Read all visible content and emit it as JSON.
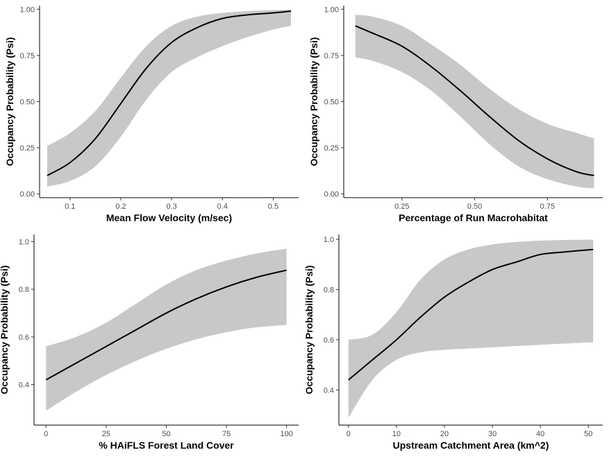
{
  "chart_data": [
    {
      "type": "line",
      "xlabel": "Mean Flow Velocity (m/sec)",
      "ylabel": "Occupancy Probability (Psi)",
      "xlim": [
        0.04,
        0.55
      ],
      "ylim": [
        -0.02,
        1.02
      ],
      "x_ticks": [
        0.1,
        0.2,
        0.3,
        0.4,
        0.5
      ],
      "x_tick_labels": [
        "0.1",
        "0.2",
        "0.3",
        "0.4",
        "0.5"
      ],
      "y_ticks": [
        0,
        0.25,
        0.5,
        0.75,
        1
      ],
      "y_tick_labels": [
        "0.00",
        "0.25",
        "0.50",
        "0.75",
        "1.00"
      ],
      "series": [
        {
          "x": [
            0.055,
            0.1,
            0.15,
            0.2,
            0.25,
            0.3,
            0.35,
            0.4,
            0.45,
            0.5,
            0.535
          ],
          "y": [
            0.1,
            0.17,
            0.3,
            0.49,
            0.68,
            0.82,
            0.9,
            0.95,
            0.97,
            0.98,
            0.99
          ],
          "lower": [
            0.04,
            0.07,
            0.15,
            0.31,
            0.51,
            0.66,
            0.74,
            0.8,
            0.85,
            0.89,
            0.91
          ],
          "upper": [
            0.26,
            0.33,
            0.45,
            0.63,
            0.8,
            0.91,
            0.96,
            0.98,
            0.99,
            0.995,
            0.997
          ]
        }
      ]
    },
    {
      "type": "line",
      "xlabel": "Percentage of Run Macrohabitat",
      "ylabel": "Occupancy Probability (Psi)",
      "xlim": [
        0.05,
        0.94
      ],
      "ylim": [
        -0.02,
        1.02
      ],
      "x_ticks": [
        0.25,
        0.5,
        0.75
      ],
      "x_tick_labels": [
        "0.25",
        "0.50",
        "0.75"
      ],
      "y_ticks": [
        0,
        0.25,
        0.5,
        0.75,
        1
      ],
      "y_tick_labels": [
        "0.00",
        "0.25",
        "0.50",
        "0.75",
        "1.00"
      ],
      "series": [
        {
          "x": [
            0.09,
            0.15,
            0.25,
            0.35,
            0.45,
            0.55,
            0.65,
            0.75,
            0.85,
            0.91
          ],
          "y": [
            0.91,
            0.87,
            0.8,
            0.69,
            0.56,
            0.42,
            0.29,
            0.19,
            0.12,
            0.1
          ],
          "lower": [
            0.74,
            0.72,
            0.66,
            0.56,
            0.42,
            0.27,
            0.15,
            0.08,
            0.04,
            0.03
          ],
          "upper": [
            0.97,
            0.96,
            0.91,
            0.81,
            0.7,
            0.57,
            0.46,
            0.38,
            0.33,
            0.3
          ]
        }
      ]
    },
    {
      "type": "line",
      "xlabel": "% HAiFLS Forest Land Cover",
      "ylabel": "Occupancy Probability (Psi)",
      "xlim": [
        -5,
        105
      ],
      "ylim": [
        0.23,
        1.03
      ],
      "x_ticks": [
        0,
        25,
        50,
        75,
        100
      ],
      "x_tick_labels": [
        "0",
        "25",
        "50",
        "75",
        "100"
      ],
      "y_ticks": [
        0.4,
        0.6,
        0.8,
        1.0
      ],
      "y_tick_labels": [
        "0.4",
        "0.6",
        "0.8",
        "1.0"
      ],
      "series": [
        {
          "x": [
            0,
            12.5,
            25,
            37.5,
            50,
            62.5,
            75,
            87.5,
            100
          ],
          "y": [
            0.42,
            0.49,
            0.56,
            0.63,
            0.7,
            0.76,
            0.81,
            0.85,
            0.88
          ],
          "lower": [
            0.29,
            0.37,
            0.44,
            0.5,
            0.55,
            0.59,
            0.62,
            0.64,
            0.65
          ],
          "upper": [
            0.56,
            0.6,
            0.66,
            0.74,
            0.82,
            0.88,
            0.92,
            0.95,
            0.97
          ]
        }
      ]
    },
    {
      "type": "line",
      "xlabel": "Upstream Catchment Area (km^2)",
      "ylabel": "Occupancy Probability (Psi)",
      "xlim": [
        -2,
        53
      ],
      "ylim": [
        0.26,
        1.02
      ],
      "x_ticks": [
        0,
        10,
        20,
        30,
        40,
        50
      ],
      "x_tick_labels": [
        "0",
        "10",
        "20",
        "30",
        "40",
        "50"
      ],
      "y_ticks": [
        0.4,
        0.6,
        0.8,
        1.0
      ],
      "y_tick_labels": [
        "0.4",
        "0.6",
        "0.8",
        "1.0"
      ],
      "series": [
        {
          "x": [
            0,
            5,
            10,
            15,
            20,
            25,
            30,
            35,
            40,
            45,
            51
          ],
          "y": [
            0.44,
            0.52,
            0.6,
            0.69,
            0.77,
            0.83,
            0.88,
            0.91,
            0.94,
            0.95,
            0.96
          ],
          "lower": [
            0.29,
            0.44,
            0.52,
            0.55,
            0.56,
            0.565,
            0.57,
            0.575,
            0.58,
            0.585,
            0.59
          ],
          "upper": [
            0.6,
            0.62,
            0.71,
            0.84,
            0.92,
            0.96,
            0.98,
            0.99,
            0.995,
            0.998,
            0.999
          ]
        }
      ]
    }
  ]
}
